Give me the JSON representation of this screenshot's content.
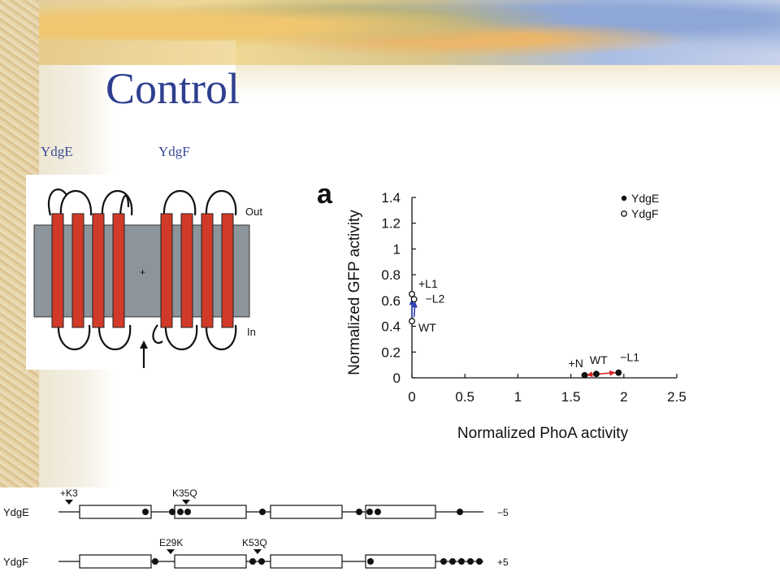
{
  "slide": {
    "title": "Control",
    "labels": {
      "ydge": "YdgE",
      "ydgf": "YdgF"
    }
  },
  "topology": {
    "out_label": "Out",
    "in_label": "In",
    "center_mark": "+",
    "helix_color": "#d13a28",
    "membrane_color": "#8c959c"
  },
  "chart_data": {
    "type": "scatter",
    "panel_label": "a",
    "xlabel": "Normalized PhoA activity",
    "ylabel": "Normalized GFP activity",
    "xlim": [
      0,
      2.5
    ],
    "ylim": [
      0,
      1.4
    ],
    "xticks": [
      "0",
      "0.5",
      "1",
      "1.5",
      "2",
      "2.5"
    ],
    "yticks": [
      "0",
      "0.2",
      "0.4",
      "0.6",
      "0.8",
      "1",
      "1.2",
      "1.4"
    ],
    "legend_position": "top-right",
    "grid": false,
    "series": [
      {
        "name": "YdgE",
        "marker": "filled",
        "points": [
          {
            "x": 1.63,
            "y": 0.02,
            "label": "+N"
          },
          {
            "x": 1.74,
            "y": 0.03,
            "label": "WT"
          },
          {
            "x": 1.95,
            "y": 0.04,
            "label": "−L1"
          }
        ]
      },
      {
        "name": "YdgF",
        "marker": "open",
        "points": [
          {
            "x": 0.0,
            "y": 0.65,
            "label": "+L1"
          },
          {
            "x": 0.02,
            "y": 0.61,
            "label": "−L2"
          },
          {
            "x": 0.0,
            "y": 0.44,
            "label": "WT"
          }
        ]
      }
    ],
    "arrow_colors": {
      "ydge": "#d61f1f",
      "ydgf": "#2a3cb0"
    }
  },
  "sequence": {
    "ydge": {
      "name": "YdgE",
      "end_charge": "−5",
      "mut1": "+K3",
      "mut2": "K35Q"
    },
    "ydgf": {
      "name": "YdgF",
      "end_charge": "+5",
      "mut1": "E29K",
      "mut2": "K53Q"
    }
  }
}
